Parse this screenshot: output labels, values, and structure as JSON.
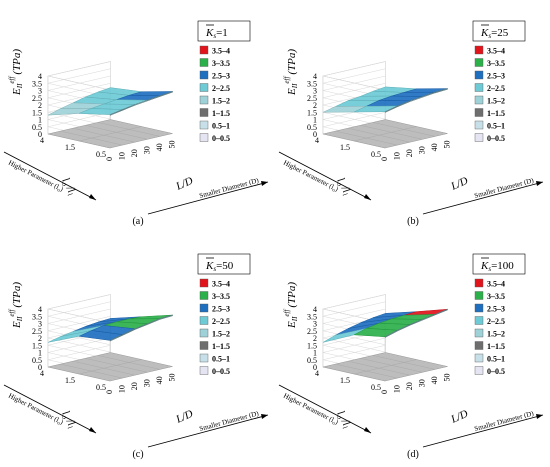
{
  "legend": {
    "entries": [
      "3.5–4",
      "3–3.5",
      "2.5–3",
      "2–2.5",
      "1.5–2",
      "1–1.5",
      "0.5–1",
      "0–0.5"
    ],
    "colors": [
      "#e1141c",
      "#2bb04a",
      "#1f6fc0",
      "#6ecbd6",
      "#9ed2d8",
      "#6e6e6e",
      "#c6dfe8",
      "#e4e4f2"
    ]
  },
  "axes": {
    "z_ticks": [
      "0",
      "0.5",
      "1",
      "1.5",
      "2",
      "2.5",
      "3",
      "3.5",
      "4"
    ],
    "ylabel": "E",
    "ylabel_sub": "II",
    "ylabel_sup": "eff",
    "ylabel_unit": "(TPa)",
    "left_axis_label": "l",
    "left_axis_sub_a": "o",
    "left_axis_sub_b": "l",
    "left_axis_ticks": [
      "4",
      "1.5",
      "0.5"
    ],
    "left_axis_desc": "Higher Parameter (l",
    "left_axis_desc_sub": "o",
    "left_axis_desc_end": ")",
    "right_axis_label": "L/D",
    "right_axis_ticks": [
      "0",
      "10",
      "20",
      "30",
      "40",
      "50"
    ],
    "right_axis_desc": "Smaller Diameter (D)"
  },
  "chart_data": [
    {
      "type": "surface",
      "panel_label": "(a)",
      "ks_prefix": "K",
      "ks_sub": "s",
      "ks_value": "=1",
      "rows": [
        "4",
        "1.5",
        "0.5"
      ],
      "cols": [
        0,
        10,
        20,
        30,
        40,
        50
      ],
      "values": [
        [
          1.3,
          1.55,
          1.75,
          1.95,
          2.1,
          2.2
        ],
        [
          1.9,
          2.05,
          2.15,
          2.25,
          2.35,
          2.4
        ],
        [
          2.3,
          2.45,
          2.6,
          2.7,
          2.8,
          2.9
        ]
      ],
      "zlim": [
        0,
        4
      ]
    },
    {
      "type": "surface",
      "panel_label": "(b)",
      "ks_prefix": "K",
      "ks_sub": "s",
      "ks_value": "=25",
      "rows": [
        "4",
        "1.5",
        "0.5"
      ],
      "cols": [
        0,
        10,
        20,
        30,
        40,
        50
      ],
      "values": [
        [
          1.5,
          1.7,
          1.9,
          2.0,
          2.15,
          2.25
        ],
        [
          2.0,
          2.2,
          2.4,
          2.5,
          2.55,
          2.6
        ],
        [
          2.5,
          2.7,
          2.85,
          2.95,
          3.05,
          3.1
        ]
      ],
      "zlim": [
        0,
        4
      ]
    },
    {
      "type": "surface",
      "panel_label": "(c)",
      "ks_prefix": "K",
      "ks_sub": "s",
      "ks_value": "=50",
      "rows": [
        "4",
        "1.5",
        "0.5"
      ],
      "cols": [
        0,
        10,
        20,
        30,
        40,
        50
      ],
      "values": [
        [
          1.7,
          1.9,
          2.05,
          2.2,
          2.3,
          2.35
        ],
        [
          2.6,
          2.8,
          2.95,
          3.0,
          3.0,
          2.95
        ],
        [
          2.8,
          3.0,
          3.2,
          3.35,
          3.5,
          3.55
        ]
      ],
      "zlim": [
        0,
        4
      ]
    },
    {
      "type": "surface",
      "panel_label": "(d)",
      "ks_prefix": "K",
      "ks_sub": "s",
      "ks_value": "=100",
      "rows": [
        "4",
        "1.5",
        "0.5"
      ],
      "cols": [
        0,
        10,
        20,
        30,
        40,
        50
      ],
      "values": [
        [
          1.7,
          2.0,
          2.25,
          2.45,
          2.6,
          2.7
        ],
        [
          2.7,
          2.95,
          3.1,
          3.2,
          3.25,
          3.3
        ],
        [
          3.05,
          3.3,
          3.5,
          3.65,
          3.8,
          3.95
        ]
      ],
      "zlim": [
        0,
        4
      ]
    }
  ]
}
